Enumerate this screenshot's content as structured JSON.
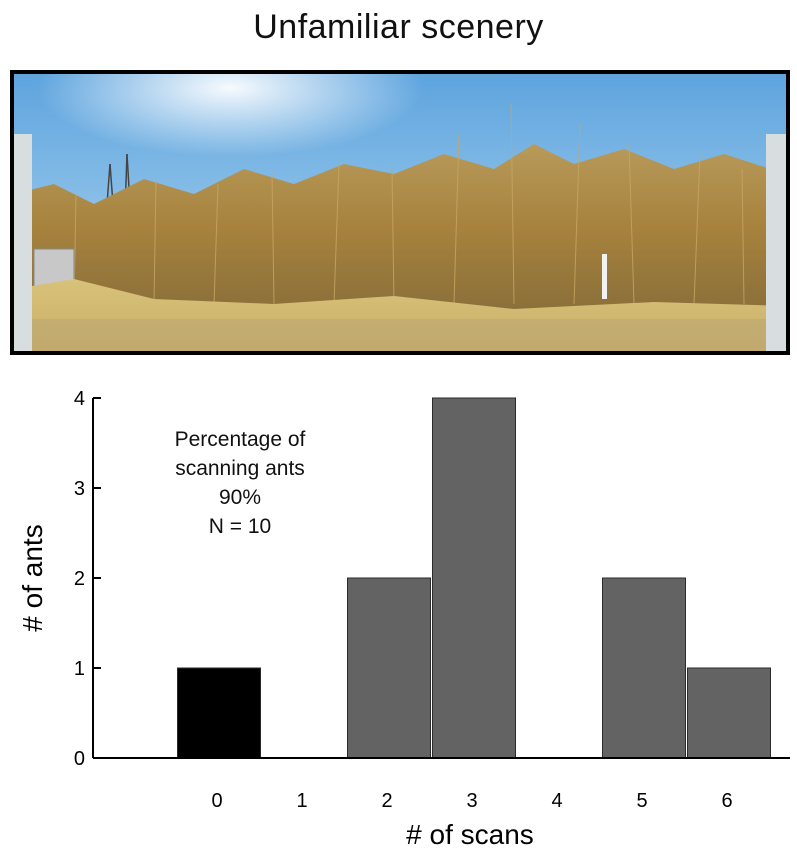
{
  "header": {
    "title": "Unfamiliar scenery"
  },
  "panorama": {
    "description_icon": "panorama-photo"
  },
  "annotation": {
    "line1": "Percentage of",
    "line2": "scanning ants",
    "line3": "90%",
    "line4": "N = 10"
  },
  "colors": {
    "highlight_bar": "#000000",
    "bar": "#636363",
    "bar_stroke": "#2b2b2b"
  },
  "chart_data": {
    "type": "bar",
    "categories": [
      "0",
      "1",
      "2",
      "3",
      "4",
      "5",
      "6"
    ],
    "values": [
      1,
      0,
      2,
      4,
      0,
      2,
      1
    ],
    "xlabel": "# of scans",
    "ylabel": "# of ants",
    "ylim": [
      0,
      4
    ],
    "yticks": [
      "0",
      "1",
      "2",
      "3",
      "4"
    ],
    "highlight_category": "0",
    "grid": false
  }
}
